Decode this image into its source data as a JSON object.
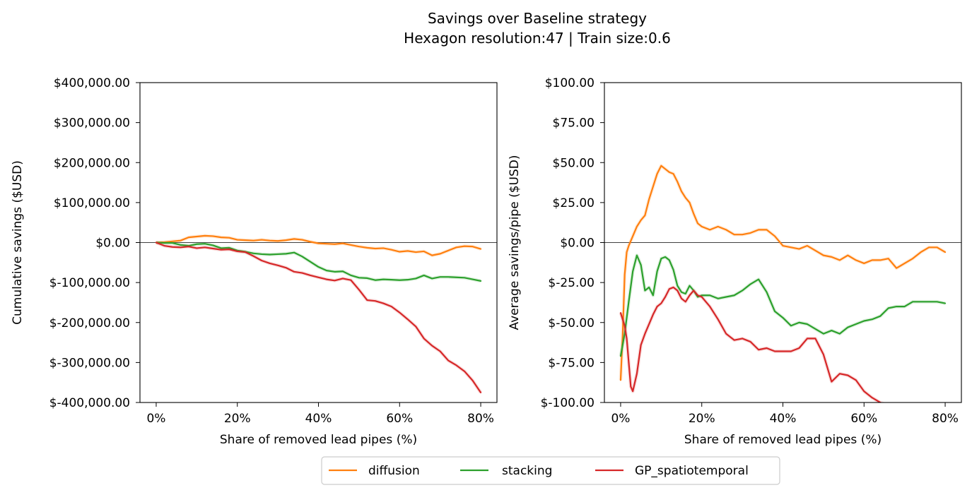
{
  "figure": {
    "title": "Savings over Baseline strategy",
    "subtitle": "Hexagon resolution:47 | Train size:0.6"
  },
  "legend": {
    "placement": "bottom-center",
    "items": [
      {
        "name": "diffusion",
        "color": "#ff7f0e"
      },
      {
        "name": "stacking",
        "color": "#2ca02c"
      },
      {
        "name": "GP_spatiotemporal",
        "color": "#d62728"
      }
    ]
  },
  "chart_data": [
    {
      "type": "line",
      "xlabel": "Share of removed lead pipes (%)",
      "ylabel": "Cumulative savings ($USD)",
      "xlim": [
        -4,
        84
      ],
      "ylim": [
        -400000,
        400000
      ],
      "xticks": [
        0,
        20,
        40,
        60,
        80
      ],
      "xtick_labels": [
        "0%",
        "20%",
        "40%",
        "60%",
        "80%"
      ],
      "yticks": [
        -400000,
        -300000,
        -200000,
        -100000,
        0,
        100000,
        200000,
        300000,
        400000
      ],
      "ytick_labels": [
        "$-400,000.00",
        "$-300,000.00",
        "$-200,000.00",
        "$-100,000.00",
        "$0.00",
        "$100,000.00",
        "$200,000.00",
        "$300,000.00",
        "$400,000.00"
      ],
      "zero_line": true,
      "grid": false,
      "series": [
        {
          "name": "diffusion",
          "color": "#ff7f0e",
          "x": [
            0,
            2,
            4,
            6,
            8,
            10,
            12,
            14,
            16,
            18,
            20,
            22,
            24,
            26,
            28,
            30,
            32,
            34,
            36,
            38,
            40,
            42,
            44,
            46,
            48,
            50,
            52,
            54,
            56,
            58,
            60,
            62,
            64,
            66,
            68,
            70,
            72,
            74,
            76,
            78,
            80
          ],
          "y": [
            0,
            1000,
            3000,
            5000,
            13000,
            15000,
            17000,
            16000,
            13000,
            12000,
            7000,
            6000,
            5000,
            7000,
            5000,
            4000,
            6000,
            9000,
            7000,
            2000,
            -2000,
            -3000,
            -4000,
            -2000,
            -6000,
            -10000,
            -13000,
            -15000,
            -14000,
            -18000,
            -23000,
            -21000,
            -24000,
            -22000,
            -32000,
            -28000,
            -20000,
            -12000,
            -9000,
            -10000,
            -16000
          ]
        },
        {
          "name": "stacking",
          "color": "#2ca02c",
          "x": [
            0,
            2,
            4,
            6,
            8,
            10,
            12,
            14,
            16,
            18,
            20,
            22,
            24,
            26,
            28,
            30,
            32,
            34,
            36,
            38,
            40,
            42,
            44,
            46,
            48,
            50,
            52,
            54,
            56,
            58,
            60,
            62,
            64,
            66,
            68,
            70,
            72,
            74,
            76,
            78,
            80
          ],
          "y": [
            0,
            -1000,
            -1000,
            -6000,
            -8000,
            -4000,
            -3000,
            -7000,
            -14000,
            -13000,
            -20000,
            -23000,
            -27000,
            -29000,
            -30000,
            -29000,
            -28000,
            -25000,
            -35000,
            -48000,
            -61000,
            -70000,
            -73000,
            -72000,
            -82000,
            -88000,
            -89000,
            -94000,
            -92000,
            -93000,
            -94000,
            -93000,
            -90000,
            -82000,
            -90000,
            -86000,
            -86000,
            -87000,
            -88000,
            -92000,
            -96000
          ]
        },
        {
          "name": "GP_spatiotemporal",
          "color": "#d62728",
          "x": [
            0,
            2,
            4,
            6,
            8,
            10,
            12,
            14,
            16,
            18,
            20,
            22,
            24,
            26,
            28,
            30,
            32,
            34,
            36,
            38,
            40,
            42,
            44,
            46,
            48,
            50,
            52,
            54,
            56,
            58,
            60,
            62,
            64,
            66,
            68,
            70,
            72,
            74,
            76,
            78,
            80
          ],
          "y": [
            0,
            -8000,
            -11000,
            -12000,
            -10000,
            -14000,
            -12000,
            -15000,
            -18000,
            -17000,
            -22000,
            -24000,
            -34000,
            -45000,
            -52000,
            -57000,
            -63000,
            -73000,
            -76000,
            -82000,
            -87000,
            -92000,
            -95000,
            -90000,
            -94000,
            -118000,
            -144000,
            -146000,
            -152000,
            -160000,
            -175000,
            -192000,
            -210000,
            -240000,
            -258000,
            -272000,
            -295000,
            -307000,
            -322000,
            -345000,
            -375000
          ]
        }
      ]
    },
    {
      "type": "line",
      "xlabel": "Share of removed lead pipes (%)",
      "ylabel": "Average savings/pipe ($USD)",
      "xlim": [
        -4,
        84
      ],
      "ylim": [
        -100,
        100
      ],
      "xticks": [
        0,
        20,
        40,
        60,
        80
      ],
      "xtick_labels": [
        "0%",
        "20%",
        "40%",
        "60%",
        "80%"
      ],
      "yticks": [
        -100,
        -75,
        -50,
        -25,
        0,
        25,
        50,
        75,
        100
      ],
      "ytick_labels": [
        "$-100.00",
        "$-75.00",
        "$-50.00",
        "$-25.00",
        "$0.00",
        "$25.00",
        "$50.00",
        "$75.00",
        "$100.00"
      ],
      "zero_line": true,
      "grid": false,
      "series": [
        {
          "name": "diffusion",
          "color": "#ff7f0e",
          "x": [
            0,
            0.5,
            1,
            1.5,
            2,
            3,
            4,
            5,
            6,
            7,
            8,
            9,
            10,
            11,
            12,
            13,
            14,
            15,
            16,
            17,
            18,
            19,
            20,
            22,
            24,
            26,
            28,
            30,
            32,
            34,
            36,
            38,
            40,
            42,
            44,
            46,
            48,
            50,
            52,
            54,
            56,
            58,
            60,
            62,
            64,
            66,
            68,
            70,
            72,
            74,
            76,
            78,
            80
          ],
          "y": [
            -86,
            -58,
            -20,
            -6,
            -2,
            4,
            10,
            14,
            17,
            27,
            35,
            43,
            48,
            46,
            44,
            43,
            38,
            32,
            28,
            25,
            18,
            12,
            10,
            8,
            10,
            8,
            5,
            5,
            6,
            8,
            8,
            4,
            -2,
            -3,
            -4,
            -2,
            -5,
            -8,
            -9,
            -11,
            -8,
            -11,
            -13,
            -11,
            -11,
            -10,
            -16,
            -13,
            -10,
            -6,
            -3,
            -3,
            -6
          ]
        },
        {
          "name": "stacking",
          "color": "#2ca02c",
          "x": [
            0,
            1,
            2,
            3,
            4,
            5,
            6,
            7,
            8,
            9,
            10,
            11,
            12,
            13,
            14,
            15,
            16,
            17,
            18,
            19,
            20,
            22,
            24,
            26,
            28,
            30,
            32,
            34,
            36,
            38,
            40,
            42,
            44,
            46,
            48,
            50,
            52,
            54,
            56,
            58,
            60,
            62,
            64,
            66,
            68,
            70,
            72,
            74,
            76,
            78,
            80
          ],
          "y": [
            -71,
            -57,
            -37,
            -18,
            -8,
            -14,
            -30,
            -28,
            -33,
            -18,
            -10,
            -9,
            -11,
            -17,
            -27,
            -31,
            -32,
            -27,
            -30,
            -34,
            -33,
            -33,
            -35,
            -34,
            -33,
            -30,
            -26,
            -23,
            -31,
            -43,
            -47,
            -52,
            -50,
            -51,
            -54,
            -57,
            -55,
            -57,
            -53,
            -51,
            -49,
            -48,
            -46,
            -41,
            -40,
            -40,
            -37,
            -37,
            -37,
            -37,
            -38
          ]
        },
        {
          "name": "GP_spatiotemporal",
          "color": "#d62728",
          "x": [
            0,
            1,
            1.5,
            2,
            2.5,
            3,
            4,
            5,
            6,
            7,
            8,
            9,
            10,
            11,
            12,
            13,
            14,
            15,
            16,
            17,
            18,
            19,
            20,
            22,
            24,
            26,
            28,
            30,
            32,
            34,
            36,
            38,
            40,
            42,
            44,
            46,
            48,
            50,
            52,
            54,
            56,
            58,
            60,
            62,
            64,
            65
          ],
          "y": [
            -44,
            -52,
            -60,
            -75,
            -90,
            -93,
            -82,
            -64,
            -57,
            -51,
            -45,
            -40,
            -38,
            -34,
            -29,
            -28,
            -30,
            -35,
            -37,
            -33,
            -30,
            -33,
            -34,
            -40,
            -48,
            -57,
            -61,
            -60,
            -62,
            -67,
            -66,
            -68,
            -68,
            -68,
            -66,
            -60,
            -60,
            -70,
            -87,
            -82,
            -83,
            -86,
            -93,
            -97,
            -100,
            -101
          ]
        }
      ]
    }
  ]
}
